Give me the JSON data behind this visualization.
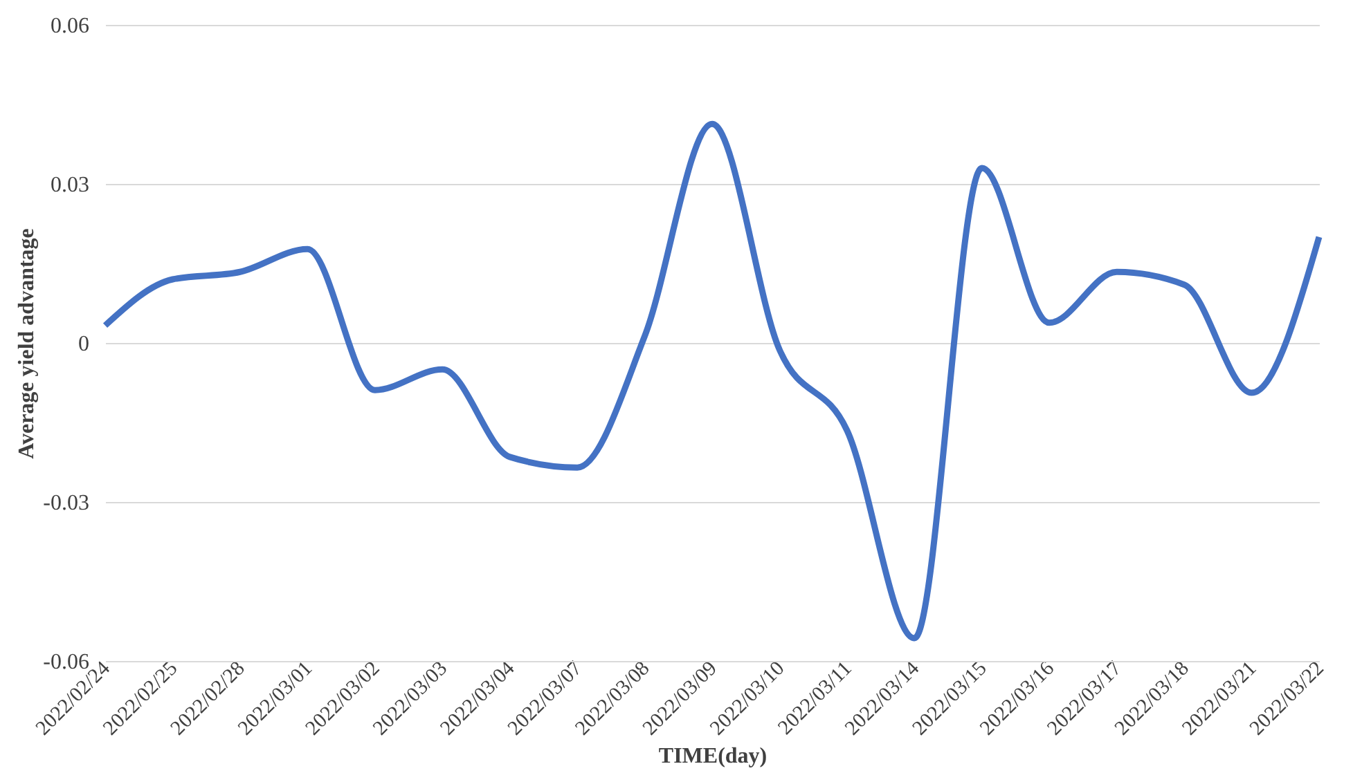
{
  "chart_data": {
    "type": "line",
    "xlabel": "TIME(day)",
    "ylabel": "Average yield advantage",
    "categories": [
      "2022/02/24",
      "2022/02/25",
      "2022/02/28",
      "2022/03/01",
      "2022/03/02",
      "2022/03/03",
      "2022/03/04",
      "2022/03/07",
      "2022/03/08",
      "2022/03/09",
      "2022/03/10",
      "2022/03/11",
      "2022/03/14",
      "2022/03/15",
      "2022/03/16",
      "2022/03/17",
      "2022/03/18",
      "2022/03/21",
      "2022/03/22"
    ],
    "series": [
      {
        "color": "#4472c4",
        "values": [
          0.0033,
          0.012,
          0.0134,
          0.0177,
          -0.0089,
          -0.005,
          -0.0215,
          -0.0235,
          0.0013,
          0.0413,
          -0.0013,
          -0.0165,
          -0.0557,
          0.033,
          0.0038,
          0.0134,
          0.011,
          -0.0094,
          0.02
        ]
      }
    ],
    "ylim": [
      -0.06,
      0.06
    ],
    "yticks": [
      -0.06,
      -0.03,
      0,
      0.03,
      0.06
    ],
    "grid": "y",
    "marker": "none",
    "line_style": "solid"
  }
}
